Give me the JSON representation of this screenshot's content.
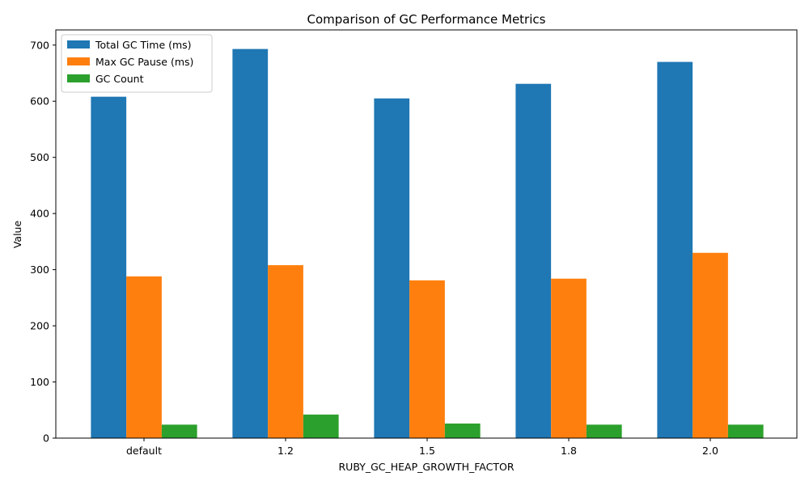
{
  "chart_data": {
    "type": "bar",
    "title": "Comparison of GC Performance Metrics",
    "xlabel": "RUBY_GC_HEAP_GROWTH_FACTOR",
    "ylabel": "Value",
    "categories": [
      "default",
      "1.2",
      "1.5",
      "1.8",
      "2.0"
    ],
    "series": [
      {
        "name": "Total GC Time (ms)",
        "color": "#1f77b4",
        "values": [
          608,
          693,
          605,
          631,
          670
        ]
      },
      {
        "name": "Max GC Pause (ms)",
        "color": "#ff7f0e",
        "values": [
          288,
          308,
          281,
          284,
          330
        ]
      },
      {
        "name": "GC Count",
        "color": "#2ca02c",
        "values": [
          24,
          42,
          26,
          24,
          24
        ]
      }
    ],
    "ylim": [
      0,
      727
    ],
    "yticks": [
      0,
      100,
      200,
      300,
      400,
      500,
      600,
      700
    ],
    "grid": false,
    "legend_position": "top-left"
  }
}
